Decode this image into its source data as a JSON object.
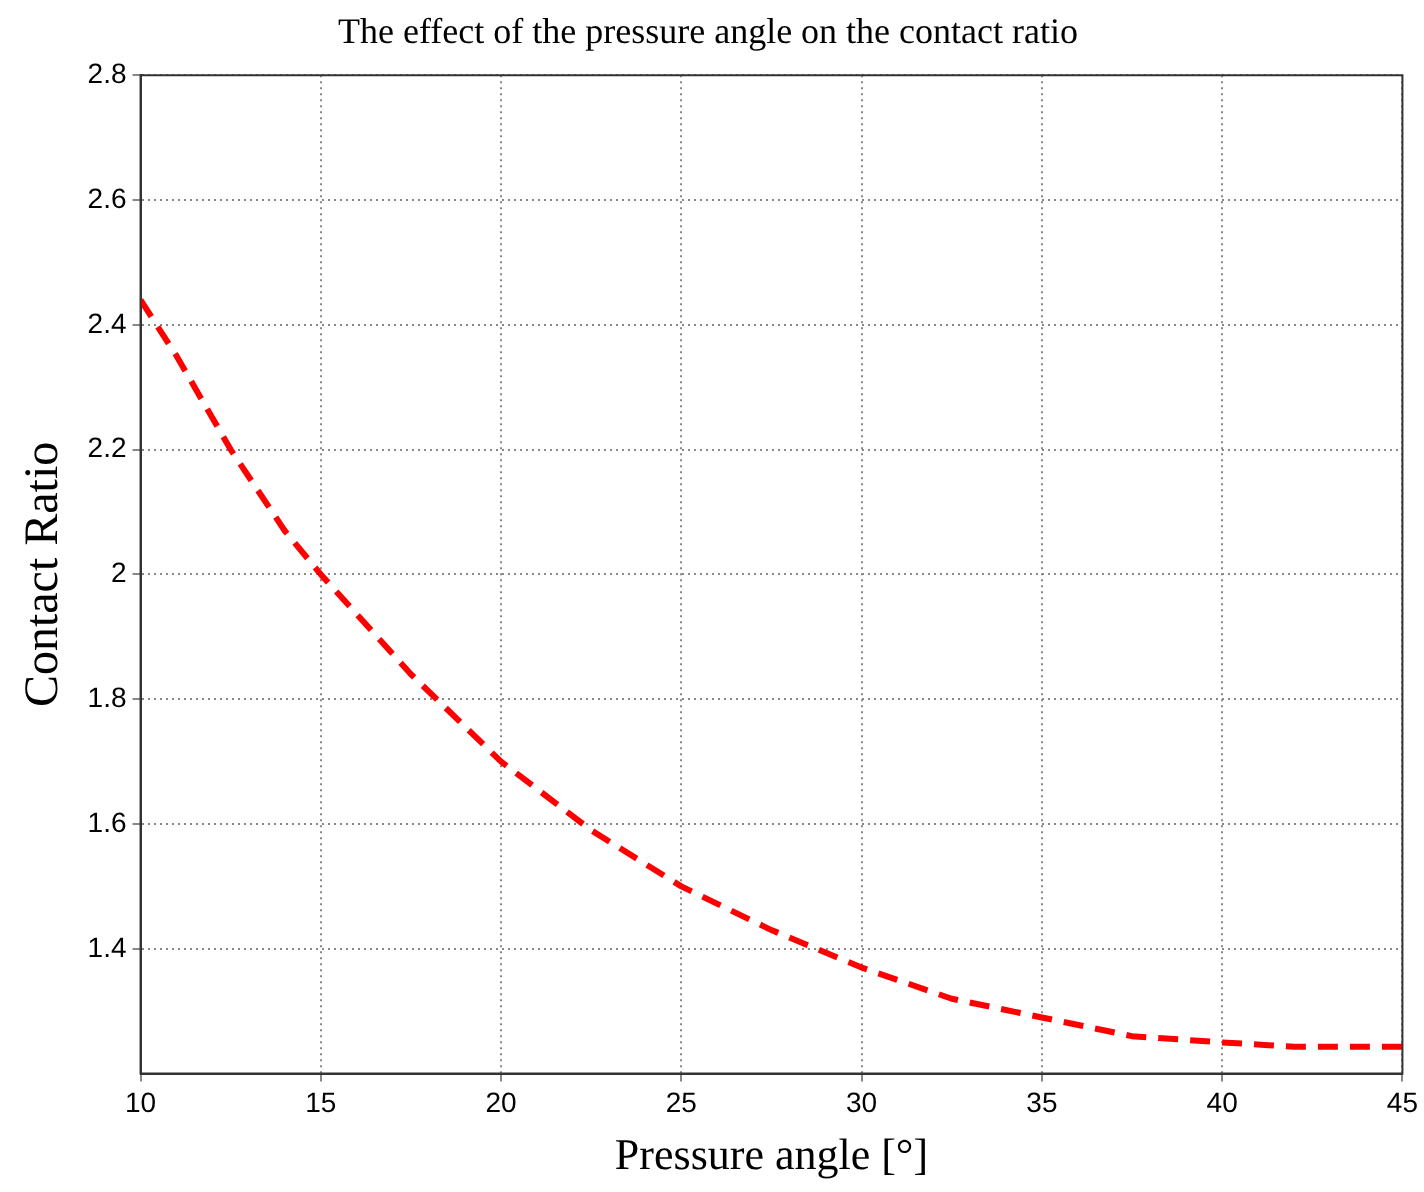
{
  "chart_data": {
    "type": "line",
    "title": "The effect of the pressure angle on the contact ratio",
    "xlabel": "Pressure angle [°]",
    "ylabel": "Contact Ratio",
    "x": [
      10,
      11,
      12.5,
      14,
      15,
      17.5,
      20,
      22.5,
      25,
      27.5,
      30,
      32.5,
      35,
      37.5,
      40,
      42,
      45
    ],
    "series": [
      {
        "color": "#ff0000",
        "values": [
          2.44,
          2.35,
          2.2,
          2.07,
          2.0,
          1.84,
          1.7,
          1.59,
          1.5,
          1.43,
          1.37,
          1.32,
          1.29,
          1.26,
          1.25,
          1.243,
          1.243
        ]
      }
    ],
    "xlim": [
      10,
      45
    ],
    "xticks": [
      10,
      15,
      20,
      25,
      30,
      35,
      40,
      45
    ],
    "ylim": [
      1.2,
      2.8
    ],
    "yticks": [
      1.4,
      1.6,
      1.8,
      2,
      2.2,
      2.4,
      2.6,
      2.8
    ],
    "grid": true,
    "legend": false,
    "marker": "none",
    "line_style": "dashed"
  }
}
